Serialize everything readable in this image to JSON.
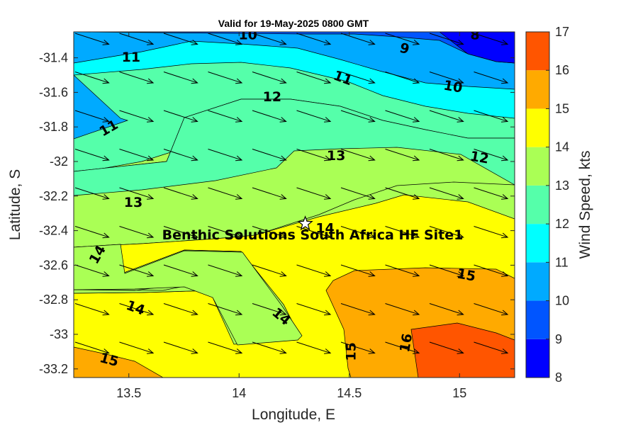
{
  "chart_data": {
    "type": "heatmap",
    "title": "Valid for 19-May-2025 0800 GMT",
    "xlabel": "Longitude, E",
    "ylabel": "Latitude, S",
    "colorbar_label": "Wind Speed, kts",
    "xlim": [
      13.25,
      15.25
    ],
    "ylim": [
      -33.25,
      -31.25
    ],
    "x_ticks": [
      13.5,
      14,
      14.5,
      15
    ],
    "x_tick_labels": [
      "13.5",
      "14",
      "14.5",
      "15"
    ],
    "y_ticks": [
      -31.4,
      -31.6,
      -31.8,
      -32,
      -32.2,
      -32.4,
      -32.6,
      -32.8,
      -33,
      -33.2
    ],
    "y_tick_labels": [
      "-31.4",
      "-31.6",
      "-31.8",
      "-32",
      "-32.2",
      "-32.4",
      "-32.6",
      "-32.8",
      "-33",
      "-33.2"
    ],
    "colorbar": {
      "range": [
        8,
        17
      ],
      "ticks": [
        "8",
        "9",
        "10",
        "11",
        "12",
        "13",
        "14",
        "15",
        "16",
        "17"
      ],
      "colors": [
        "#0000ff",
        "#0055ff",
        "#00aaff",
        "#00ffff",
        "#55ffaa",
        "#aaff55",
        "#ffff00",
        "#ffaa00",
        "#ff5500"
      ]
    },
    "contour_levels": [
      8,
      9,
      10,
      11,
      12,
      13,
      14,
      15,
      16
    ],
    "contour_labels": [
      {
        "text": "8",
        "lon": 15.07,
        "lat": -31.27,
        "angle": 0
      },
      {
        "text": "9",
        "lon": 14.75,
        "lat": -31.35,
        "angle": 15
      },
      {
        "text": "10",
        "lon": 14.04,
        "lat": -31.27,
        "angle": 0
      },
      {
        "text": "10",
        "lon": 14.97,
        "lat": -31.57,
        "angle": 10
      },
      {
        "text": "11",
        "lon": 13.51,
        "lat": -31.4,
        "angle": 0
      },
      {
        "text": "11",
        "lon": 14.47,
        "lat": -31.52,
        "angle": 20
      },
      {
        "text": "11",
        "lon": 13.41,
        "lat": -31.81,
        "angle": -30
      },
      {
        "text": "12",
        "lon": 14.15,
        "lat": -31.63,
        "angle": 0
      },
      {
        "text": "12",
        "lon": 15.09,
        "lat": -31.98,
        "angle": 10
      },
      {
        "text": "13",
        "lon": 14.44,
        "lat": -31.97,
        "angle": 0
      },
      {
        "text": "13",
        "lon": 13.52,
        "lat": -32.24,
        "angle": 0
      },
      {
        "text": "14",
        "lon": 14.39,
        "lat": -32.39,
        "angle": 0
      },
      {
        "text": "14",
        "lon": 13.36,
        "lat": -32.54,
        "angle": -60
      },
      {
        "text": "14",
        "lon": 13.53,
        "lat": -32.85,
        "angle": 20
      },
      {
        "text": "14",
        "lon": 14.19,
        "lat": -32.9,
        "angle": 40
      },
      {
        "text": "15",
        "lon": 15.03,
        "lat": -32.66,
        "angle": 10
      },
      {
        "text": "15",
        "lon": 13.41,
        "lat": -33.15,
        "angle": 15
      },
      {
        "text": "15",
        "lon": 14.51,
        "lat": -33.1,
        "angle": -90
      },
      {
        "text": "16",
        "lon": 14.76,
        "lat": -33.05,
        "angle": -80
      }
    ],
    "site": {
      "name": "Benthic Solutions South Africa HF Site1",
      "lon": 14.3,
      "lat": -32.36
    },
    "wind_vectors_note": "arrows point east-south-east",
    "wind_direction_deg": 108,
    "grid": false
  }
}
